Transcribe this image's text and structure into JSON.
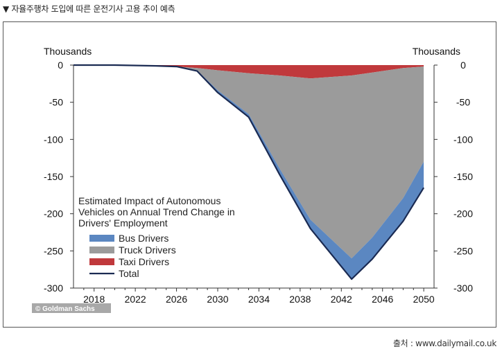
{
  "caption": "▼ 자율주행차 도입에 따른 운전기사 고용 추이 예측",
  "source": "출처 : www.dailymail.co.uk",
  "watermark": "© Goldman Sachs",
  "chart_data": {
    "type": "area",
    "title": "Estimated Impact of Autonomous Vehicles on Annual Trend Change in Drivers' Employment",
    "title_lines": [
      "Estimated Impact of Autonomous",
      "Vehicles on Annual Trend Change in",
      "Drivers' Employment"
    ],
    "ylabel_left": "Thousands",
    "ylabel_right": "Thousands",
    "xlabel": "",
    "xlim": [
      2016,
      2051
    ],
    "ylim": [
      -300,
      0
    ],
    "xticks": [
      2018,
      2022,
      2026,
      2030,
      2034,
      2038,
      2042,
      2046,
      2050
    ],
    "yticks": [
      0,
      -50,
      -100,
      -150,
      -200,
      -250,
      -300
    ],
    "stacked": true,
    "x": [
      2016,
      2020,
      2024,
      2026,
      2028,
      2030,
      2033,
      2036,
      2039,
      2043,
      2045,
      2048,
      2050
    ],
    "series": [
      {
        "name": "Taxi Drivers",
        "color": "#c0393c",
        "values": [
          0,
          0,
          -1,
          -2,
          -4,
          -7,
          -11,
          -14,
          -18,
          -14,
          -10,
          -4,
          -2
        ]
      },
      {
        "name": "Truck Drivers",
        "color": "#9b9b9b",
        "values": [
          0,
          0,
          0,
          0,
          -3,
          -27,
          -55,
          -125,
          -190,
          -246,
          -222,
          -175,
          -128
        ]
      },
      {
        "name": "Bus Drivers",
        "color": "#5b87c1",
        "values": [
          0,
          0,
          0,
          0,
          -1,
          -3,
          -4,
          -8,
          -12,
          -28,
          -29,
          -30,
          -35
        ]
      }
    ],
    "total": {
      "name": "Total",
      "color": "#1a2a52",
      "values": [
        0,
        0,
        -1,
        -2,
        -8,
        -37,
        -70,
        -147,
        -220,
        -288,
        -261,
        -210,
        -165
      ]
    },
    "legend": [
      {
        "label": "Bus Drivers",
        "color": "#5b87c1",
        "kind": "patch"
      },
      {
        "label": "Truck Drivers",
        "color": "#9b9b9b",
        "kind": "patch"
      },
      {
        "label": "Taxi Drivers",
        "color": "#c0393c",
        "kind": "patch"
      },
      {
        "label": "Total",
        "color": "#1a2a52",
        "kind": "line"
      }
    ]
  }
}
